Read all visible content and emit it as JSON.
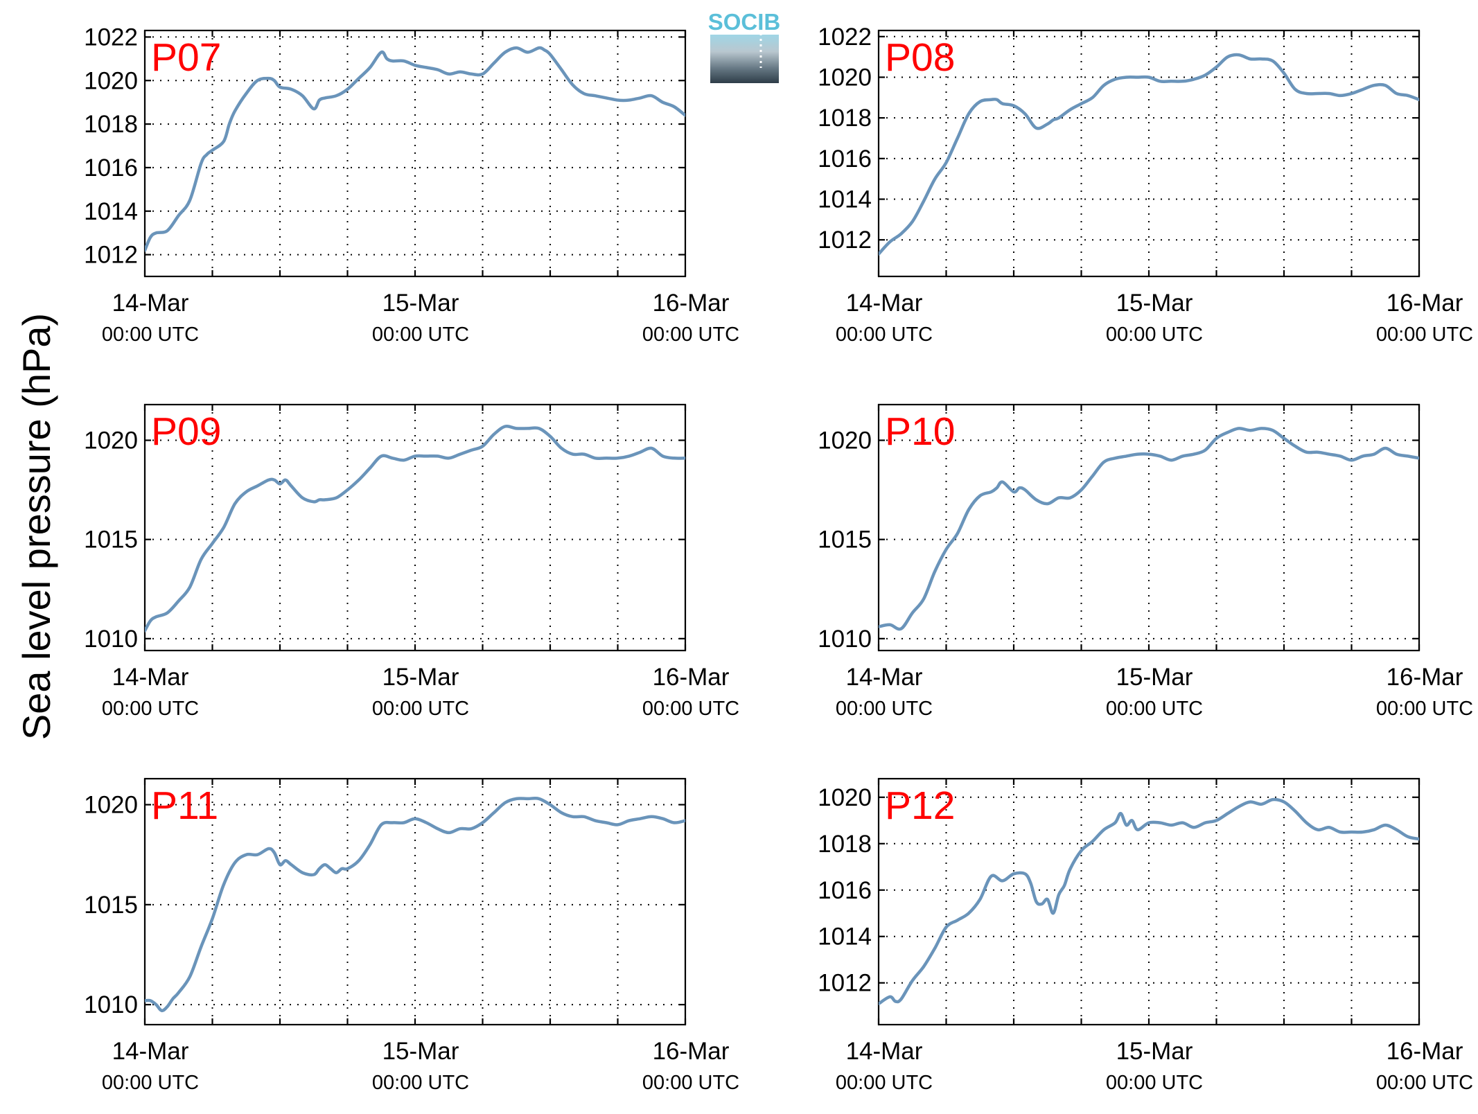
{
  "figure": {
    "ylabel": "Sea level pressure (hPa)",
    "logo_text": "SOCIB",
    "colors": {
      "line": "#6a94ba",
      "panel_label": "#ff0000",
      "logo_text": "#5bbfd9"
    }
  },
  "chart_data": [
    {
      "type": "line",
      "title": "P07",
      "xlabel": "",
      "ylabel": "",
      "x_unit": "hours since 14-Mar 00:00 UTC",
      "xlim": [
        0,
        48
      ],
      "ylim": [
        1011,
        1022.3
      ],
      "yticks": [
        1012,
        1014,
        1016,
        1018,
        1020,
        1022
      ],
      "xticks": [
        {
          "x": 0,
          "date": "14-Mar",
          "time": "00:00 UTC"
        },
        {
          "x": 24,
          "date": "15-Mar",
          "time": "00:00 UTC"
        },
        {
          "x": 48,
          "date": "16-Mar",
          "time": "00:00 UTC"
        }
      ],
      "grid": true,
      "series": [
        {
          "x": [
            0,
            0.5,
            1,
            2,
            3,
            4,
            5,
            5.5,
            6,
            7,
            7.5,
            8,
            9,
            10,
            11,
            11.5,
            12,
            13,
            14,
            15,
            15.5,
            16,
            17,
            18,
            19,
            20,
            21,
            21.5,
            22,
            23,
            24,
            25,
            26,
            27,
            28,
            29,
            30,
            31,
            32,
            33,
            34,
            35,
            35.5,
            36,
            37,
            38,
            39,
            40,
            41,
            42,
            43,
            44,
            45,
            46,
            47,
            48
          ],
          "y": [
            1012.2,
            1012.8,
            1013.0,
            1013.1,
            1013.8,
            1014.5,
            1016.2,
            1016.6,
            1016.8,
            1017.2,
            1018.0,
            1018.6,
            1019.4,
            1020.0,
            1020.1,
            1020.0,
            1019.7,
            1019.6,
            1019.3,
            1018.7,
            1019.1,
            1019.2,
            1019.3,
            1019.6,
            1020.1,
            1020.6,
            1021.3,
            1021.0,
            1020.9,
            1020.9,
            1020.7,
            1020.6,
            1020.5,
            1020.3,
            1020.4,
            1020.3,
            1020.3,
            1020.8,
            1021.3,
            1021.5,
            1021.3,
            1021.5,
            1021.4,
            1021.2,
            1020.5,
            1019.8,
            1019.4,
            1019.3,
            1019.2,
            1019.1,
            1019.1,
            1019.2,
            1019.3,
            1019.0,
            1018.8,
            1018.4
          ]
        }
      ]
    },
    {
      "type": "line",
      "title": "P08",
      "xlabel": "",
      "ylabel": "",
      "x_unit": "hours since 14-Mar 00:00 UTC",
      "xlim": [
        0,
        48
      ],
      "ylim": [
        1010.2,
        1022.3
      ],
      "yticks": [
        1012,
        1014,
        1016,
        1018,
        1020,
        1022
      ],
      "xticks": [
        {
          "x": 0,
          "date": "14-Mar",
          "time": "00:00 UTC"
        },
        {
          "x": 24,
          "date": "15-Mar",
          "time": "00:00 UTC"
        },
        {
          "x": 48,
          "date": "16-Mar",
          "time": "00:00 UTC"
        }
      ],
      "grid": true,
      "series": [
        {
          "x": [
            0,
            1,
            2,
            3,
            4,
            5,
            6,
            7,
            8,
            9,
            10,
            10.5,
            11,
            12,
            13,
            14,
            15,
            15.5,
            16,
            17,
            18,
            19,
            20,
            21,
            22,
            23,
            24,
            25,
            26,
            27,
            28,
            29,
            30,
            31,
            32,
            33,
            34,
            35,
            36,
            37,
            38,
            39,
            40,
            41,
            42,
            43,
            44,
            45,
            46,
            47,
            48
          ],
          "y": [
            1011.3,
            1011.9,
            1012.3,
            1012.9,
            1013.9,
            1015.0,
            1015.8,
            1017.0,
            1018.2,
            1018.8,
            1018.9,
            1018.9,
            1018.7,
            1018.6,
            1018.2,
            1017.5,
            1017.7,
            1017.9,
            1018.0,
            1018.4,
            1018.7,
            1019.0,
            1019.6,
            1019.9,
            1020.0,
            1020.0,
            1020.0,
            1019.8,
            1019.8,
            1019.8,
            1019.9,
            1020.1,
            1020.5,
            1021.0,
            1021.1,
            1020.9,
            1020.9,
            1020.8,
            1020.2,
            1019.4,
            1019.2,
            1019.2,
            1019.2,
            1019.1,
            1019.2,
            1019.4,
            1019.6,
            1019.6,
            1019.2,
            1019.1,
            1018.9
          ]
        }
      ]
    },
    {
      "type": "line",
      "title": "P09",
      "xlabel": "",
      "ylabel": "",
      "x_unit": "hours since 14-Mar 00:00 UTC",
      "xlim": [
        0,
        48
      ],
      "ylim": [
        1009.4,
        1021.8
      ],
      "yticks": [
        1010,
        1015,
        1020
      ],
      "xticks": [
        {
          "x": 0,
          "date": "14-Mar",
          "time": "00:00 UTC"
        },
        {
          "x": 24,
          "date": "15-Mar",
          "time": "00:00 UTC"
        },
        {
          "x": 48,
          "date": "16-Mar",
          "time": "00:00 UTC"
        }
      ],
      "grid": true,
      "series": [
        {
          "x": [
            0,
            0.5,
            1,
            2,
            3,
            4,
            5,
            6,
            7,
            8,
            9,
            10,
            11,
            11.5,
            12,
            12.5,
            13,
            14,
            15,
            15.5,
            16,
            17,
            18,
            19,
            20,
            21,
            22,
            23,
            24,
            25,
            26,
            27,
            28,
            29,
            30,
            31,
            32,
            33,
            34,
            35,
            36,
            37,
            38,
            39,
            40,
            41,
            42,
            43,
            44,
            45,
            46,
            47,
            48
          ],
          "y": [
            1010.4,
            1010.9,
            1011.1,
            1011.3,
            1011.9,
            1012.6,
            1014.0,
            1014.8,
            1015.6,
            1016.8,
            1017.4,
            1017.7,
            1018.0,
            1018.0,
            1017.8,
            1018.0,
            1017.7,
            1017.1,
            1016.9,
            1017.0,
            1017.0,
            1017.1,
            1017.5,
            1018.0,
            1018.6,
            1019.2,
            1019.1,
            1019.0,
            1019.2,
            1019.2,
            1019.2,
            1019.1,
            1019.3,
            1019.5,
            1019.7,
            1020.3,
            1020.7,
            1020.6,
            1020.6,
            1020.6,
            1020.2,
            1019.6,
            1019.3,
            1019.3,
            1019.1,
            1019.1,
            1019.1,
            1019.2,
            1019.4,
            1019.6,
            1019.2,
            1019.1,
            1019.1
          ]
        }
      ]
    },
    {
      "type": "line",
      "title": "P10",
      "xlabel": "",
      "ylabel": "",
      "x_unit": "hours since 14-Mar 00:00 UTC",
      "xlim": [
        0,
        48
      ],
      "ylim": [
        1009.4,
        1021.8
      ],
      "yticks": [
        1010,
        1015,
        1020
      ],
      "xticks": [
        {
          "x": 0,
          "date": "14-Mar",
          "time": "00:00 UTC"
        },
        {
          "x": 24,
          "date": "15-Mar",
          "time": "00:00 UTC"
        },
        {
          "x": 48,
          "date": "16-Mar",
          "time": "00:00 UTC"
        }
      ],
      "grid": true,
      "series": [
        {
          "x": [
            0,
            1,
            2,
            3,
            4,
            5,
            6,
            7,
            8,
            9,
            10,
            10.5,
            11,
            12,
            12.5,
            13,
            14,
            15,
            16,
            17,
            18,
            19,
            20,
            21,
            22,
            23,
            24,
            25,
            26,
            27,
            28,
            29,
            30,
            31,
            32,
            33,
            34,
            35,
            36,
            37,
            38,
            39,
            40,
            41,
            42,
            43,
            44,
            45,
            46,
            47,
            48
          ],
          "y": [
            1010.6,
            1010.7,
            1010.5,
            1011.3,
            1012.0,
            1013.4,
            1014.5,
            1015.3,
            1016.5,
            1017.2,
            1017.4,
            1017.6,
            1017.9,
            1017.4,
            1017.6,
            1017.5,
            1017.0,
            1016.8,
            1017.1,
            1017.1,
            1017.5,
            1018.2,
            1018.9,
            1019.1,
            1019.2,
            1019.3,
            1019.3,
            1019.2,
            1019.0,
            1019.2,
            1019.3,
            1019.5,
            1020.1,
            1020.4,
            1020.6,
            1020.5,
            1020.6,
            1020.5,
            1020.1,
            1019.7,
            1019.4,
            1019.4,
            1019.3,
            1019.2,
            1019.0,
            1019.2,
            1019.3,
            1019.6,
            1019.3,
            1019.2,
            1019.1
          ]
        }
      ]
    },
    {
      "type": "line",
      "title": "P11",
      "xlabel": "",
      "ylabel": "",
      "x_unit": "hours since 14-Mar 00:00 UTC",
      "xlim": [
        0,
        48
      ],
      "ylim": [
        1009.0,
        1021.3
      ],
      "yticks": [
        1010,
        1015,
        1020
      ],
      "xticks": [
        {
          "x": 0,
          "date": "14-Mar",
          "time": "00:00 UTC"
        },
        {
          "x": 24,
          "date": "15-Mar",
          "time": "00:00 UTC"
        },
        {
          "x": 48,
          "date": "16-Mar",
          "time": "00:00 UTC"
        }
      ],
      "grid": true,
      "series": [
        {
          "x": [
            0,
            0.5,
            1,
            1.5,
            2,
            2.5,
            3,
            4,
            5,
            6,
            7,
            8,
            9,
            10,
            11,
            11.5,
            12,
            12.5,
            13,
            14,
            15,
            15.5,
            16,
            16.5,
            17,
            17.5,
            18,
            19,
            20,
            21,
            22,
            23,
            24,
            25,
            26,
            27,
            28,
            29,
            30,
            31,
            32,
            33,
            34,
            35,
            36,
            37,
            38,
            39,
            40,
            41,
            42,
            43,
            44,
            45,
            46,
            47,
            48
          ],
          "y": [
            1010.2,
            1010.2,
            1010.0,
            1009.7,
            1009.9,
            1010.3,
            1010.6,
            1011.4,
            1012.9,
            1014.3,
            1016.0,
            1017.1,
            1017.5,
            1017.5,
            1017.8,
            1017.6,
            1017.0,
            1017.2,
            1017.0,
            1016.6,
            1016.5,
            1016.8,
            1017.0,
            1016.8,
            1016.6,
            1016.8,
            1016.8,
            1017.2,
            1018.0,
            1019.0,
            1019.1,
            1019.1,
            1019.3,
            1019.1,
            1018.8,
            1018.6,
            1018.8,
            1018.8,
            1019.1,
            1019.6,
            1020.1,
            1020.3,
            1020.3,
            1020.3,
            1020.0,
            1019.6,
            1019.4,
            1019.4,
            1019.2,
            1019.1,
            1019.0,
            1019.2,
            1019.3,
            1019.4,
            1019.3,
            1019.1,
            1019.2
          ]
        }
      ]
    },
    {
      "type": "line",
      "title": "P12",
      "xlabel": "",
      "ylabel": "",
      "x_unit": "hours since 14-Mar 00:00 UTC",
      "xlim": [
        0,
        48
      ],
      "ylim": [
        1010.2,
        1020.8
      ],
      "yticks": [
        1012,
        1014,
        1016,
        1018,
        1020
      ],
      "xticks": [
        {
          "x": 0,
          "date": "14-Mar",
          "time": "00:00 UTC"
        },
        {
          "x": 24,
          "date": "15-Mar",
          "time": "00:00 UTC"
        },
        {
          "x": 48,
          "date": "16-Mar",
          "time": "00:00 UTC"
        }
      ],
      "grid": true,
      "series": [
        {
          "x": [
            0,
            1,
            1.5,
            2,
            3,
            4,
            5,
            6,
            7,
            8,
            9,
            10,
            11,
            12,
            13,
            13.5,
            14,
            14.5,
            15,
            15.5,
            16,
            16.5,
            17,
            18,
            19,
            20,
            21,
            21.5,
            22,
            22.5,
            23,
            24,
            25,
            26,
            27,
            28,
            29,
            30,
            31,
            32,
            33,
            34,
            35,
            36,
            37,
            38,
            39,
            40,
            41,
            42,
            43,
            44,
            45,
            46,
            47,
            48
          ],
          "y": [
            1011.1,
            1011.4,
            1011.2,
            1011.3,
            1012.1,
            1012.7,
            1013.5,
            1014.4,
            1014.7,
            1015.0,
            1015.6,
            1016.6,
            1016.4,
            1016.7,
            1016.7,
            1016.3,
            1015.5,
            1015.4,
            1015.6,
            1015.0,
            1015.8,
            1016.2,
            1016.9,
            1017.7,
            1018.1,
            1018.6,
            1018.9,
            1019.3,
            1018.8,
            1019.0,
            1018.6,
            1018.9,
            1018.9,
            1018.8,
            1018.9,
            1018.7,
            1018.9,
            1019.0,
            1019.3,
            1019.6,
            1019.8,
            1019.7,
            1019.9,
            1019.8,
            1019.4,
            1018.9,
            1018.6,
            1018.7,
            1018.5,
            1018.5,
            1018.5,
            1018.6,
            1018.8,
            1018.6,
            1018.3,
            1018.2
          ]
        }
      ]
    }
  ]
}
